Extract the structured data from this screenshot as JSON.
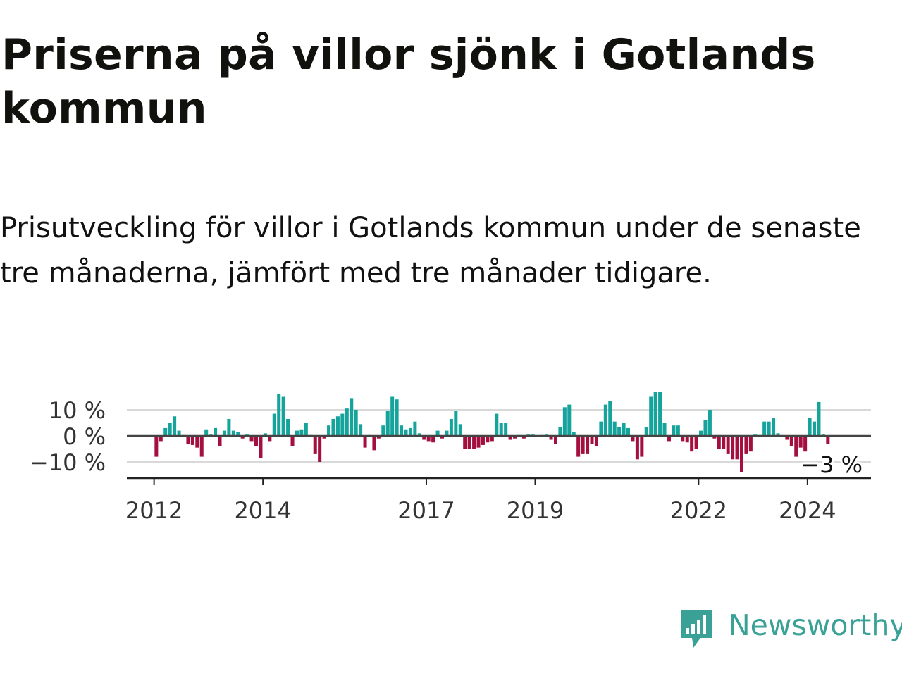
{
  "title": "Priserna på villor sjönk i Gotlands kommun",
  "subtitle": "Prisutveckling för villor i Gotlands kommun under de senaste tre månaderna, jämfört med tre månader tidigare.",
  "brand": {
    "name": "Newsworthy",
    "icon": "newsworthy-logo-icon",
    "color": "#3aa197"
  },
  "colors": {
    "positive": "#14a49c",
    "negative": "#a3103f",
    "gridline": "#d9d9d9",
    "zero_line": "#444444",
    "axis": "#222222",
    "text": "#333333"
  },
  "chart_data": {
    "type": "bar",
    "title": "",
    "xlabel": "",
    "ylabel": "",
    "unit": "%",
    "ylim": [
      -16,
      16
    ],
    "y_ticks": [
      {
        "value": 10,
        "label": "10 %"
      },
      {
        "value": 0,
        "label": "0 %"
      },
      {
        "value": -10,
        "label": "−10 %"
      }
    ],
    "x_ticks": [
      "2012",
      "2014",
      "2017",
      "2019",
      "2022",
      "2024"
    ],
    "x_range": [
      "2011-07",
      "2025-03"
    ],
    "grid": true,
    "last_value_label": "−3 %",
    "series": [
      {
        "start": "2012-01",
        "values": [
          -8,
          -2,
          3,
          5,
          7.5,
          2,
          0,
          -3,
          -3.5,
          -4.5,
          -8,
          2.5,
          0.5,
          3,
          -4,
          2,
          6.5,
          2,
          1.5,
          -1,
          0.5,
          -2,
          -4,
          -8.5,
          1,
          -2,
          8.5,
          16,
          15,
          6.5,
          -4,
          2,
          2.5,
          5,
          0,
          -7,
          -10,
          -1,
          4,
          6.5,
          7.5,
          8.5,
          10.5,
          14.5,
          10,
          4.5,
          -4.5,
          0,
          -5.5,
          -1,
          4,
          9.5,
          15,
          14,
          4,
          2.5,
          3,
          5.5,
          1,
          -1.5,
          -2,
          -2.5,
          2,
          -1,
          2,
          6.5,
          9.5,
          4.5,
          -5,
          -5,
          -5,
          -4.5,
          -3.5,
          -2.5,
          -2,
          8.5,
          5,
          5,
          -1.5,
          -1,
          0,
          -1,
          0.5,
          0.5,
          -0.5,
          0,
          0.5,
          -1.5,
          -3,
          3.5,
          11,
          12,
          1.5,
          -8,
          -7,
          -7,
          -3,
          -4,
          5.5,
          12,
          13.5,
          5.5,
          3.5,
          5,
          3,
          -2,
          -9,
          -8,
          3.5,
          15,
          17,
          17,
          5,
          -2,
          4,
          4,
          -2,
          -2.5,
          -6,
          -5,
          2,
          6,
          10,
          -1,
          -5,
          -5,
          -7,
          -9,
          -9,
          -14,
          -7,
          -6,
          0.5,
          0,
          5.5,
          5.5,
          7,
          1,
          -0.5,
          -1.5,
          -4,
          -8,
          -4.5,
          -6,
          7,
          5.5,
          13,
          0.5,
          -3
        ]
      }
    ]
  }
}
